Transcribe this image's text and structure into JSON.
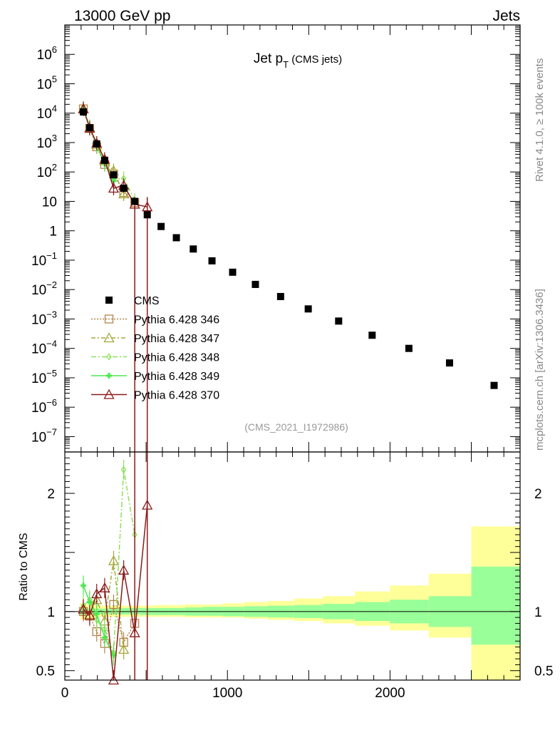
{
  "header": {
    "left": "13000 GeV pp",
    "right": "Jets"
  },
  "side": {
    "rivet": "Rivet 4.1.0, ≥ 100k events",
    "mcplots": "mcplots.cern.ch [arXiv:1306.3436]"
  },
  "colors": {
    "cms": "#000000",
    "p346": "#b5844a",
    "p347": "#a3a83a",
    "p348": "#8ee05a",
    "p349": "#4ee84e",
    "p370": "#8b1a1a",
    "band_outer": "#ffff99",
    "band_inner": "#99ff99"
  },
  "chart_data": [
    {
      "type": "scatter",
      "title": "Jet p",
      "title_sub": "T",
      "title_suffix": "(CMS jets)",
      "watermark": "(CMS_2021_I1972986)",
      "yscale": "log",
      "xlim": [
        0,
        2800
      ],
      "ylim": [
        3e-08,
        10000000.0
      ],
      "ytick_labels": [
        {
          "base": "10",
          "exp": "6",
          "v": 1000000.0
        },
        {
          "base": "10",
          "exp": "5",
          "v": 100000.0
        },
        {
          "base": "10",
          "exp": "4",
          "v": 10000.0
        },
        {
          "base": "10",
          "exp": "3",
          "v": 1000.0
        },
        {
          "base": "10",
          "exp": "2",
          "v": 100.0
        },
        {
          "base": "10",
          "exp": "",
          "v": 10
        },
        {
          "base": "1",
          "exp": "",
          "v": 1
        },
        {
          "base": "10",
          "exp": "−1",
          "v": 0.1
        },
        {
          "base": "10",
          "exp": "−2",
          "v": 0.01
        },
        {
          "base": "10",
          "exp": "−3",
          "v": 0.001
        },
        {
          "base": "10",
          "exp": "−4",
          "v": 0.0001
        },
        {
          "base": "10",
          "exp": "−5",
          "v": 1e-05
        },
        {
          "base": "10",
          "exp": "−6",
          "v": 1e-06
        },
        {
          "base": "10",
          "exp": "−7",
          "v": 1e-07
        }
      ],
      "legend": [
        "CMS",
        "Pythia 6.428 346",
        "Pythia 6.428 347",
        "Pythia 6.428 348",
        "Pythia 6.428 349",
        "Pythia 6.428 370"
      ],
      "cms": {
        "x": [
          114,
          153,
          196,
          245,
          300,
          362,
          430,
          507,
          592,
          686,
          790,
          905,
          1032,
          1172,
          1327,
          1497,
          1684,
          1890,
          2116,
          2366,
          2640
        ],
        "y": [
          11000,
          3200,
          900,
          250,
          80,
          28,
          10,
          3.5,
          1.4,
          0.58,
          0.24,
          0.095,
          0.039,
          0.015,
          0.0058,
          0.0022,
          0.00085,
          0.00028,
          0.0001,
          3.2e-05,
          5.5e-06
        ]
      },
      "series": [
        {
          "name": "Pythia 6.428 346",
          "marker": "square",
          "dash": "2,2",
          "color": "#b5844a",
          "x": [
            114,
            153,
            196,
            245,
            300,
            362,
            430
          ],
          "y": [
            14000,
            3000,
            720,
            180,
            85,
            20,
            9
          ]
        },
        {
          "name": "Pythia 6.428 347",
          "marker": "triangle",
          "dash": "6,3,2,3",
          "color": "#a3a83a",
          "x": [
            114,
            153,
            196,
            245,
            300,
            362
          ],
          "y": [
            14500,
            3200,
            850,
            240,
            110,
            18
          ]
        },
        {
          "name": "Pythia 6.428 348",
          "marker": "diamond",
          "dash": "7,3,2,3",
          "color": "#8ee05a",
          "x": [
            114,
            153,
            196,
            245,
            300,
            362,
            430
          ],
          "y": [
            14000,
            3500,
            900,
            210,
            55,
            60,
            11
          ]
        },
        {
          "name": "Pythia 6.428 349",
          "marker": "cross",
          "dash": "",
          "color": "#4ee84e",
          "x": [
            114,
            153,
            196,
            245,
            300
          ],
          "y": [
            14000,
            3400,
            800,
            190,
            50
          ]
        },
        {
          "name": "Pythia 6.428 370",
          "marker": "triangle",
          "dash": "",
          "color": "#8b1a1a",
          "x": [
            114,
            153,
            196,
            245,
            300,
            362,
            430,
            507
          ],
          "y": [
            14000,
            3100,
            950,
            270,
            28,
            35,
            8,
            6.5
          ]
        }
      ]
    },
    {
      "type": "line",
      "ylabel": "Ratio to CMS",
      "xlabel": "",
      "xlim": [
        0,
        2800
      ],
      "ylim": [
        0.42,
        2.35
      ],
      "yticks": [
        0.5,
        1,
        2
      ],
      "ytick_labels": [
        "0.5",
        "1",
        "2"
      ],
      "xticks": [
        0,
        1000,
        2000
      ],
      "xtick_labels": [
        "0",
        "1000",
        "2000"
      ],
      "band_edges": [
        95,
        132,
        174,
        218,
        272,
        329,
        395,
        467,
        548,
        636,
        739,
        850,
        970,
        1103,
        1249,
        1410,
        1588,
        1784,
        1999,
        2238,
        2500,
        2800
      ],
      "band_outer_lo": [
        0.93,
        0.94,
        0.95,
        0.955,
        0.955,
        0.955,
        0.955,
        0.955,
        0.955,
        0.955,
        0.95,
        0.95,
        0.95,
        0.94,
        0.93,
        0.92,
        0.9,
        0.88,
        0.84,
        0.78,
        0.35
      ],
      "band_outer_hi": [
        1.07,
        1.06,
        1.055,
        1.05,
        1.05,
        1.05,
        1.05,
        1.05,
        1.055,
        1.055,
        1.06,
        1.06,
        1.07,
        1.08,
        1.09,
        1.11,
        1.13,
        1.17,
        1.22,
        1.32,
        1.72
      ],
      "band_inner_lo": [
        0.97,
        0.975,
        0.975,
        0.975,
        0.975,
        0.975,
        0.975,
        0.97,
        0.97,
        0.97,
        0.965,
        0.965,
        0.96,
        0.955,
        0.95,
        0.945,
        0.935,
        0.92,
        0.9,
        0.87,
        0.72
      ],
      "band_inner_hi": [
        1.03,
        1.025,
        1.025,
        1.025,
        1.03,
        1.03,
        1.03,
        1.03,
        1.03,
        1.03,
        1.035,
        1.04,
        1.04,
        1.045,
        1.05,
        1.055,
        1.065,
        1.08,
        1.1,
        1.13,
        1.38
      ],
      "series": [
        {
          "name": "Pythia 6.428 346",
          "marker": "square",
          "dash": "2,2",
          "color": "#b5844a",
          "x": [
            114,
            153,
            196,
            245,
            300,
            362,
            430
          ],
          "y": [
            1.0,
            0.96,
            0.83,
            0.73,
            1.06,
            0.74,
            0.9
          ]
        },
        {
          "name": "Pythia 6.428 347",
          "marker": "triangle",
          "dash": "6,3,2,3",
          "color": "#a3a83a",
          "x": [
            114,
            153,
            196,
            245,
            300,
            362
          ],
          "y": [
            1.02,
            0.97,
            1.1,
            0.92,
            1.43,
            0.68
          ]
        },
        {
          "name": "Pythia 6.428 348",
          "marker": "diamond",
          "dash": "7,3,2,3",
          "color": "#8ee05a",
          "x": [
            114,
            153,
            196,
            245,
            300,
            362,
            430
          ],
          "y": [
            1.05,
            1.1,
            0.93,
            0.85,
            0.65,
            2.2,
            1.65
          ]
        },
        {
          "name": "Pythia 6.428 349",
          "marker": "cross",
          "dash": "",
          "color": "#4ee84e",
          "x": [
            114,
            153,
            196,
            245,
            300
          ],
          "y": [
            1.22,
            1.08,
            0.98,
            0.78,
            0.63
          ]
        },
        {
          "name": "Pythia 6.428 370",
          "marker": "triangle",
          "dash": "",
          "color": "#8b1a1a",
          "x": [
            114,
            153,
            196,
            245,
            300,
            362,
            430,
            507
          ],
          "y": [
            1.02,
            0.97,
            1.15,
            1.2,
            0.42,
            1.35,
            0.82,
            1.9
          ]
        }
      ]
    }
  ]
}
